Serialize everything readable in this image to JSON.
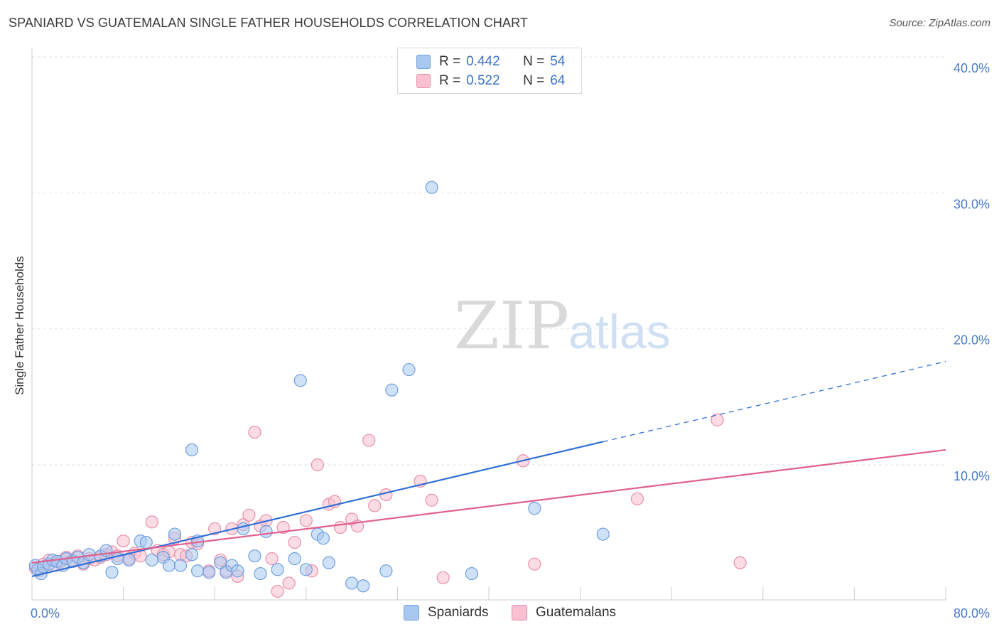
{
  "title": "SPANIARD VS GUATEMALAN SINGLE FATHER HOUSEHOLDS CORRELATION CHART",
  "source": "Source: ZipAtlas.com",
  "watermark": {
    "zip": "ZIP",
    "atlas": "atlas"
  },
  "legend": {
    "r_label": "R =",
    "n_label": "N =",
    "rows": [
      {
        "r": "0.442",
        "n": "54",
        "color": "#a8c8f0",
        "border": "#6e9fe0"
      },
      {
        "r": "0.522",
        "n": "64",
        "color": "#f8c0d0",
        "border": "#e890a8"
      }
    ]
  },
  "bottom_legend": [
    {
      "label": "Spaniards",
      "color": "#a8c8f0",
      "border": "#6e9fe0"
    },
    {
      "label": "Guatemalans",
      "color": "#f8c0d0",
      "border": "#e890a8"
    }
  ],
  "chart_data": {
    "type": "scatter",
    "ylabel": "Single Father Households",
    "xlabel": "",
    "xlim": [
      0,
      80
    ],
    "ylim": [
      0,
      42
    ],
    "x_tick_labels": [
      {
        "value": 0,
        "label": "0.0%"
      },
      {
        "value": 80,
        "label": "80.0%"
      }
    ],
    "y_tick_labels": [
      {
        "value": 10,
        "label": "10.0%"
      },
      {
        "value": 20,
        "label": "20.0%"
      },
      {
        "value": 30,
        "label": "30.0%"
      },
      {
        "value": 40,
        "label": "40.0%"
      }
    ],
    "grid": true,
    "legend_position": "top-center",
    "series": [
      {
        "name": "Spaniards",
        "color": "#6e9fe0",
        "fill": "#a8c8f0",
        "trend": {
          "x0": 0,
          "y0": 1.8,
          "x1": 50,
          "y1": 11.7,
          "x_dash_end": 80,
          "y_dash_end": 17.6,
          "color": "#2f6fd6"
        },
        "points": [
          [
            0.3,
            2.6
          ],
          [
            0.5,
            2.3
          ],
          [
            0.8,
            2.0
          ],
          [
            1.0,
            2.5
          ],
          [
            1.5,
            2.7
          ],
          [
            1.8,
            3.0
          ],
          [
            2.2,
            2.9
          ],
          [
            2.7,
            2.6
          ],
          [
            3.0,
            3.1
          ],
          [
            3.6,
            2.9
          ],
          [
            4.0,
            3.2
          ],
          [
            4.5,
            2.8
          ],
          [
            5.0,
            3.4
          ],
          [
            6.0,
            3.3
          ],
          [
            6.5,
            3.7
          ],
          [
            7.5,
            3.1
          ],
          [
            8.5,
            3.0
          ],
          [
            9.5,
            4.4
          ],
          [
            10.0,
            4.3
          ],
          [
            10.5,
            3.0
          ],
          [
            11.5,
            3.2
          ],
          [
            12.0,
            2.6
          ],
          [
            12.5,
            4.9
          ],
          [
            13.0,
            2.6
          ],
          [
            14.0,
            3.4
          ],
          [
            14.0,
            11.1
          ],
          [
            14.5,
            4.4
          ],
          [
            14.5,
            2.2
          ],
          [
            15.5,
            2.1
          ],
          [
            16.5,
            2.8
          ],
          [
            17.0,
            2.1
          ],
          [
            17.5,
            2.6
          ],
          [
            18.0,
            2.2
          ],
          [
            18.5,
            5.3
          ],
          [
            19.5,
            3.3
          ],
          [
            20.0,
            2.0
          ],
          [
            20.5,
            5.1
          ],
          [
            21.5,
            2.3
          ],
          [
            23.0,
            3.1
          ],
          [
            23.5,
            16.2
          ],
          [
            24.0,
            2.3
          ],
          [
            25.0,
            4.9
          ],
          [
            25.5,
            4.6
          ],
          [
            26.0,
            2.8
          ],
          [
            28.0,
            1.3
          ],
          [
            29.0,
            1.1
          ],
          [
            31.0,
            2.2
          ],
          [
            31.5,
            15.5
          ],
          [
            33.0,
            17.0
          ],
          [
            35.0,
            30.4
          ],
          [
            38.5,
            2.0
          ],
          [
            44.0,
            6.8
          ],
          [
            50.0,
            4.9
          ],
          [
            7.0,
            2.1
          ]
        ]
      },
      {
        "name": "Guatemalans",
        "color": "#e890a8",
        "fill": "#f8c0d0",
        "trend": {
          "x0": 0,
          "y0": 2.8,
          "x1": 80,
          "y1": 11.1,
          "color": "#e06090"
        },
        "points": [
          [
            0.3,
            2.4
          ],
          [
            0.6,
            2.2
          ],
          [
            1.0,
            2.7
          ],
          [
            1.5,
            3.0
          ],
          [
            2.0,
            2.6
          ],
          [
            2.5,
            2.9
          ],
          [
            3.0,
            3.2
          ],
          [
            3.5,
            3.0
          ],
          [
            4.0,
            3.3
          ],
          [
            4.5,
            2.7
          ],
          [
            5.0,
            3.1
          ],
          [
            5.5,
            3.0
          ],
          [
            6.0,
            3.2
          ],
          [
            6.5,
            3.4
          ],
          [
            7.0,
            3.6
          ],
          [
            7.5,
            3.3
          ],
          [
            8.0,
            4.4
          ],
          [
            8.5,
            3.1
          ],
          [
            9.0,
            3.5
          ],
          [
            9.5,
            3.3
          ],
          [
            10.5,
            5.8
          ],
          [
            11.0,
            3.7
          ],
          [
            11.5,
            3.4
          ],
          [
            12.0,
            3.6
          ],
          [
            12.5,
            4.6
          ],
          [
            13.0,
            3.4
          ],
          [
            13.5,
            3.3
          ],
          [
            14.0,
            4.3
          ],
          [
            14.5,
            4.2
          ],
          [
            15.5,
            2.2
          ],
          [
            16.0,
            5.3
          ],
          [
            16.5,
            3.0
          ],
          [
            17.0,
            2.2
          ],
          [
            17.5,
            5.3
          ],
          [
            18.0,
            1.8
          ],
          [
            18.5,
            5.6
          ],
          [
            19.0,
            6.3
          ],
          [
            19.5,
            12.4
          ],
          [
            20.0,
            5.5
          ],
          [
            20.5,
            5.9
          ],
          [
            21.0,
            3.1
          ],
          [
            21.5,
            0.7
          ],
          [
            22.0,
            5.4
          ],
          [
            22.5,
            1.3
          ],
          [
            23.0,
            4.3
          ],
          [
            24.0,
            5.9
          ],
          [
            24.5,
            2.2
          ],
          [
            25.0,
            10.0
          ],
          [
            26.0,
            7.1
          ],
          [
            26.5,
            7.3
          ],
          [
            27.0,
            5.4
          ],
          [
            28.0,
            6.0
          ],
          [
            28.5,
            5.5
          ],
          [
            29.5,
            11.8
          ],
          [
            30.0,
            7.0
          ],
          [
            31.0,
            7.8
          ],
          [
            34.0,
            8.8
          ],
          [
            35.0,
            7.4
          ],
          [
            36.0,
            1.7
          ],
          [
            43.0,
            10.3
          ],
          [
            44.0,
            2.7
          ],
          [
            53.0,
            7.5
          ],
          [
            60.0,
            13.3
          ],
          [
            62.0,
            2.8
          ]
        ]
      }
    ]
  }
}
